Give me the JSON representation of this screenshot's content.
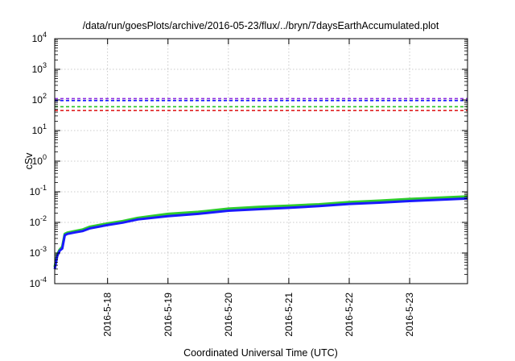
{
  "chart_data": {
    "type": "line",
    "title": "/data/run/goesPlots/archive/2016-05-23/flux/../bryn/7daysEarthAccumulated.plot",
    "xlabel": "Coordinated Universal Time (UTC)",
    "ylabel": "cSv",
    "y_scale": "log",
    "ylim": [
      0.0001,
      10000
    ],
    "xlim": [
      "2016-05-17T03:00",
      "2016-05-23T23:00"
    ],
    "grid": true,
    "y_ticks": [
      {
        "base": "10",
        "exp": "-4"
      },
      {
        "base": "10",
        "exp": "-3"
      },
      {
        "base": "10",
        "exp": "-2"
      },
      {
        "base": "10",
        "exp": "-1"
      },
      {
        "base": "10",
        "exp": "0"
      },
      {
        "base": "10",
        "exp": "1"
      },
      {
        "base": "10",
        "exp": "2"
      },
      {
        "base": "10",
        "exp": "3"
      },
      {
        "base": "10",
        "exp": "4"
      }
    ],
    "x_ticks": [
      "2016-5-18",
      "2016-5-19",
      "2016-5-20",
      "2016-5-21",
      "2016-5-22",
      "2016-5-23"
    ],
    "reference_lines": [
      {
        "y": 110,
        "color": "#8b2be2",
        "style": "dashed"
      },
      {
        "y": 95,
        "color": "#1a1aff",
        "style": "dashed"
      },
      {
        "y": 60,
        "color": "#22c322",
        "style": "dashed"
      },
      {
        "y": 45,
        "color": "#e02020",
        "style": "dashed"
      }
    ],
    "series": [
      {
        "color": "#2ecc2e",
        "x": [
          "2016-05-17T03:00",
          "2016-05-17T04:00",
          "2016-05-17T05:00",
          "2016-05-17T06:00",
          "2016-05-17T07:00",
          "2016-05-17T08:00",
          "2016-05-17T11:00",
          "2016-05-17T14:00",
          "2016-05-17T17:00",
          "2016-05-18T00:00",
          "2016-05-18T06:00",
          "2016-05-18T12:00",
          "2016-05-19T00:00",
          "2016-05-19T12:00",
          "2016-05-20T00:00",
          "2016-05-20T12:00",
          "2016-05-21T00:00",
          "2016-05-21T12:00",
          "2016-05-22T00:00",
          "2016-05-22T12:00",
          "2016-05-23T00:00",
          "2016-05-23T12:00",
          "2016-05-23T23:00"
        ],
        "y": [
          0.00035,
          0.0009,
          0.0013,
          0.0016,
          0.0042,
          0.0046,
          0.0052,
          0.0058,
          0.0072,
          0.0092,
          0.011,
          0.014,
          0.019,
          0.022,
          0.028,
          0.032,
          0.035,
          0.039,
          0.046,
          0.051,
          0.058,
          0.064,
          0.07
        ]
      },
      {
        "color": "#1a1aff",
        "x": [
          "2016-05-17T03:00",
          "2016-05-17T04:00",
          "2016-05-17T05:00",
          "2016-05-17T06:00",
          "2016-05-17T07:00",
          "2016-05-17T08:00",
          "2016-05-17T11:00",
          "2016-05-17T14:00",
          "2016-05-17T17:00",
          "2016-05-18T00:00",
          "2016-05-18T06:00",
          "2016-05-18T12:00",
          "2016-05-19T00:00",
          "2016-05-19T12:00",
          "2016-05-20T00:00",
          "2016-05-20T12:00",
          "2016-05-21T00:00",
          "2016-05-21T12:00",
          "2016-05-22T00:00",
          "2016-05-22T12:00",
          "2016-05-23T00:00",
          "2016-05-23T12:00",
          "2016-05-23T23:00"
        ],
        "y": [
          0.0003,
          0.0008,
          0.0012,
          0.0014,
          0.0038,
          0.0042,
          0.0047,
          0.0052,
          0.0064,
          0.0082,
          0.0098,
          0.0125,
          0.016,
          0.019,
          0.024,
          0.027,
          0.03,
          0.034,
          0.04,
          0.044,
          0.05,
          0.055,
          0.06
        ]
      }
    ]
  }
}
